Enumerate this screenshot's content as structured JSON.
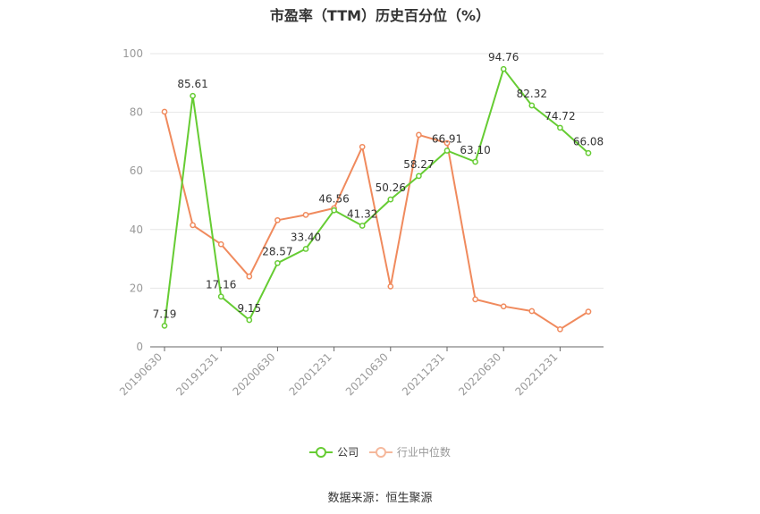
{
  "title": "市盈率（TTM）历史百分位（%）",
  "source_note": "数据来源：恒生聚源",
  "colors": {
    "company": "#66cc33",
    "industry": "#f08a5d",
    "grid": "#e6e6e6",
    "axis": "#999999",
    "label": "#333333"
  },
  "chart_data": {
    "type": "line",
    "title": "市盈率（TTM）历史百分位（%）",
    "x": [
      "20190630",
      "20190930",
      "20191231",
      "20200331",
      "20200630",
      "20200930",
      "20201231",
      "20210331",
      "20210630",
      "20210930",
      "20211231",
      "20220331",
      "20220630",
      "20220930",
      "20221231",
      "20230331"
    ],
    "x_tick_labels": [
      "20190630",
      "20191231",
      "20200630",
      "20201231",
      "20210630",
      "20211231",
      "20220630",
      "20221231"
    ],
    "y_ticks": [
      "0",
      "20",
      "40",
      "60",
      "80",
      "100"
    ],
    "ylim": [
      0,
      100
    ],
    "grid": true,
    "legend_position": "bottom-center",
    "series": [
      {
        "name": "公司",
        "color": "#66cc33",
        "show_labels": true,
        "values": [
          7.19,
          85.61,
          17.16,
          9.15,
          28.57,
          33.4,
          46.56,
          41.32,
          50.26,
          58.27,
          66.91,
          63.1,
          94.76,
          82.32,
          74.72,
          66.08
        ],
        "labels": [
          "7.19",
          "85.61",
          "17.16",
          "9.15",
          "28.57",
          "33.40",
          "46.56",
          "41.32",
          "50.26",
          "58.27",
          "66.91",
          "63.10",
          "94.76",
          "82.32",
          "74.72",
          "66.08"
        ]
      },
      {
        "name": "行业中位数",
        "color": "#f08a5d",
        "show_labels": false,
        "values": [
          80.2,
          41.5,
          35.0,
          24.0,
          43.2,
          45.0,
          47.3,
          68.2,
          20.6,
          72.3,
          69.5,
          16.2,
          13.8,
          12.2,
          6.0,
          12.0
        ]
      }
    ]
  }
}
